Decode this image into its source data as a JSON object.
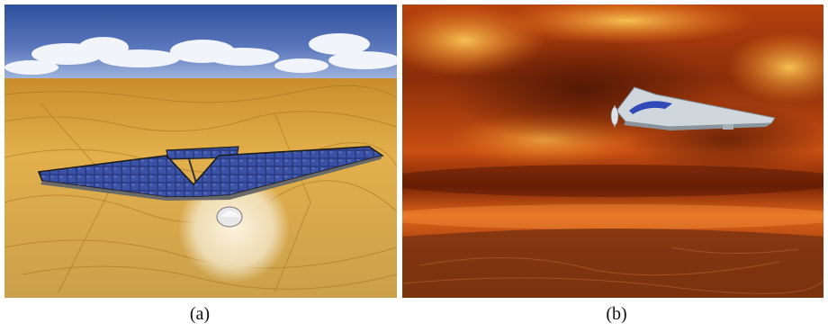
{
  "figure": {
    "panels": [
      {
        "label": "(a)",
        "scene": "solar-powered-aircraft-over-desert-terrain"
      },
      {
        "label": "(b)",
        "scene": "aircraft-flying-through-orange-clouds"
      }
    ],
    "colors": {
      "sky_top": "#2e4f9c",
      "sky_bottom": "#9fb5dd",
      "terrain": "#d9a441",
      "terrain_dark": "#a8701e",
      "cloud_red": "#c84a10",
      "cloud_orange": "#ff9a24",
      "panel_blue": "#2c3f86",
      "airframe": "#cfd6dc"
    }
  }
}
